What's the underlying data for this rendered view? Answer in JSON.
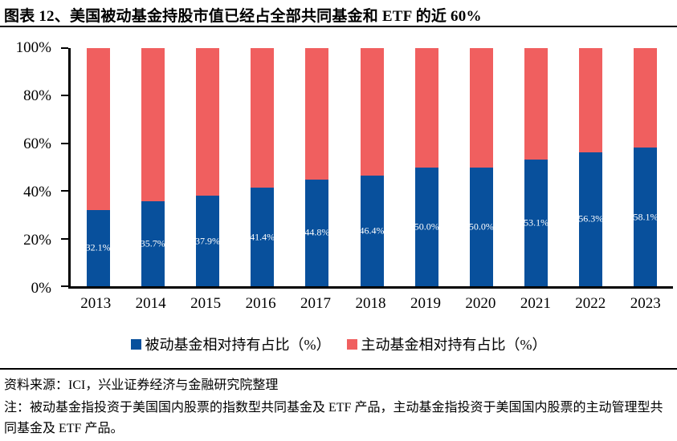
{
  "title": "图表 12、美国被动基金持股市值已经占全部共同基金和 ETF 的近 60%",
  "colors": {
    "passive_blue": "#08509C",
    "active_red": "#F05F5F",
    "axis_black": "#000000",
    "bar_label_white": "#FFFFFF"
  },
  "chart_data": {
    "type": "bar",
    "stacked": true,
    "title": "图表 12、美国被动基金持股市值已经占全部共同基金和 ETF 的近 60%",
    "categories": [
      "2013",
      "2014",
      "2015",
      "2016",
      "2017",
      "2018",
      "2019",
      "2020",
      "2021",
      "2022",
      "2023"
    ],
    "series": [
      {
        "name": "被动基金相对持有占比（%）",
        "color": "#08509C",
        "values": [
          32.1,
          35.7,
          37.9,
          41.4,
          44.8,
          46.4,
          50.0,
          50.0,
          53.1,
          56.3,
          58.1
        ]
      },
      {
        "name": "主动基金相对持有占比（%）",
        "color": "#F05F5F",
        "values": [
          67.9,
          64.3,
          62.1,
          58.6,
          55.2,
          53.6,
          50.0,
          50.0,
          46.9,
          43.7,
          41.9
        ]
      }
    ],
    "data_labels": [
      "32.1%",
      "35.7%",
      "37.9%",
      "41.4%",
      "44.8%",
      "46.4%",
      "50.0%",
      "50.0%",
      "53.1%",
      "56.3%",
      "58.1%"
    ],
    "y_ticks": [
      "100%",
      "80%",
      "60%",
      "40%",
      "20%",
      "0%"
    ],
    "ylim": [
      0,
      100
    ],
    "grid": false,
    "legend_position": "bottom"
  },
  "footer": {
    "source": "资料来源：ICI，兴业证券经济与金融研究院整理",
    "note": "注：被动基金指投资于美国国内股票的指数型共同基金及 ETF 产品，主动基金指投资于美国国内股票的主动管理型共同基金及 ETF 产品。"
  }
}
